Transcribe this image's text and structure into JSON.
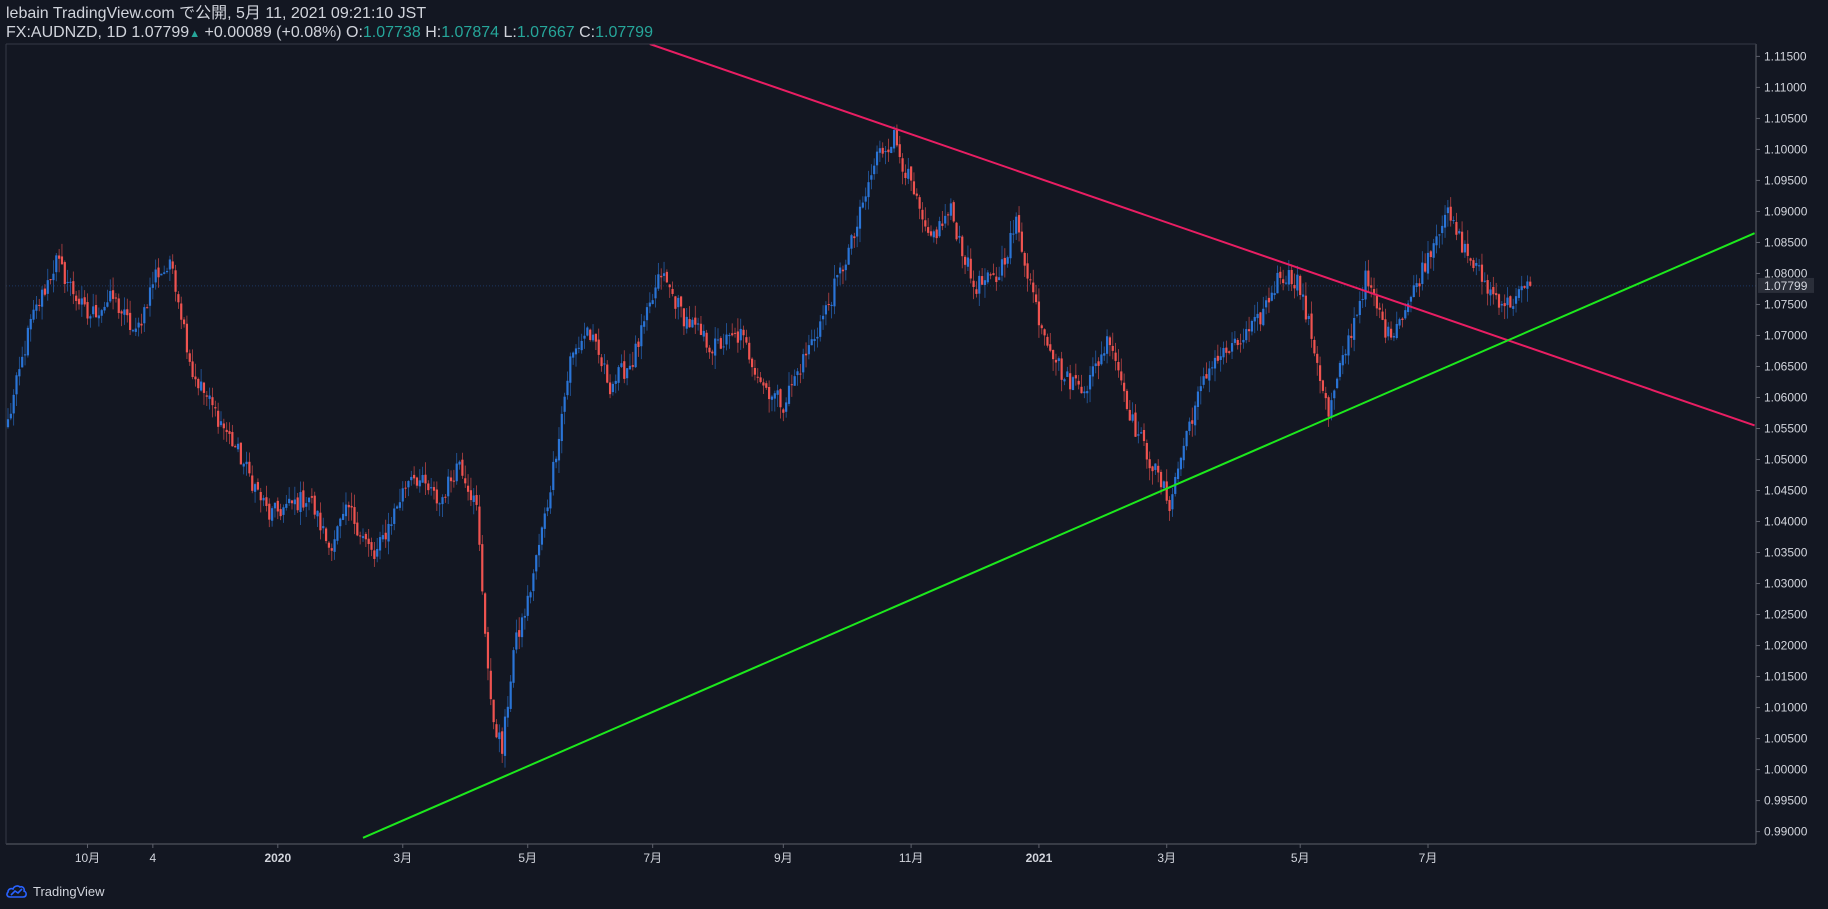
{
  "header": {
    "publish_line": "lebain TradingView.com で公開, 5月 11, 2021 09:21:10 JST",
    "symbol": "FX:AUDNZD, 1D",
    "last": "1.07799",
    "change_arrow": "▲",
    "change": "+0.00089 (+0.08%)",
    "open_label": "O:",
    "open": "1.07738",
    "high_label": "H:",
    "high": "1.07874",
    "low_label": "L:",
    "low": "1.07667",
    "close_label": "C:",
    "close": "1.07799"
  },
  "footer": {
    "brand": "TradingView"
  },
  "colors": {
    "background": "#131722",
    "up_candle": "#2a74d6",
    "down_candle": "#ef5350",
    "resistance_line": "#e91e63",
    "support_line": "#1de91d",
    "text": "#d1d4dc",
    "positive": "#26a69a"
  },
  "chart_data": {
    "type": "candlestick",
    "symbol": "FX:AUDNZD",
    "interval": "1D",
    "ylim": [
      0.988,
      1.117
    ],
    "y_ticks": [
      "1.11500",
      "1.11000",
      "1.10500",
      "1.10000",
      "1.09500",
      "1.09000",
      "1.08500",
      "1.08000",
      "1.07500",
      "1.07000",
      "1.06500",
      "1.06000",
      "1.05500",
      "1.05000",
      "1.04500",
      "1.04000",
      "1.03500",
      "1.03000",
      "1.02500",
      "1.02000",
      "1.01500",
      "1.01000",
      "1.00500",
      "1.00000",
      "0.99500",
      "0.99000"
    ],
    "last_price_label": "1.07799",
    "x_ticks": [
      {
        "label": "10月",
        "bold": false
      },
      {
        "label": "4",
        "bold": false
      },
      {
        "label": "2020",
        "bold": true
      },
      {
        "label": "3月",
        "bold": false
      },
      {
        "label": "5月",
        "bold": false
      },
      {
        "label": "7月",
        "bold": false
      },
      {
        "label": "9月",
        "bold": false
      },
      {
        "label": "11月",
        "bold": false
      },
      {
        "label": "2021",
        "bold": true
      },
      {
        "label": "3月",
        "bold": false
      },
      {
        "label": "5月",
        "bold": false
      },
      {
        "label": "7月",
        "bold": false
      }
    ],
    "close_path": [
      [
        0,
        1.056
      ],
      [
        8,
        1.072
      ],
      [
        17,
        1.082
      ],
      [
        28,
        1.073
      ],
      [
        37,
        1.076
      ],
      [
        45,
        1.07
      ],
      [
        52,
        1.08
      ],
      [
        58,
        1.081
      ],
      [
        65,
        1.064
      ],
      [
        80,
        1.052
      ],
      [
        92,
        1.041
      ],
      [
        106,
        1.044
      ],
      [
        113,
        1.036
      ],
      [
        120,
        1.042
      ],
      [
        129,
        1.034
      ],
      [
        142,
        1.048
      ],
      [
        152,
        1.043
      ],
      [
        159,
        1.05
      ],
      [
        165,
        1.042
      ],
      [
        170,
        1.01
      ],
      [
        174,
        1.003
      ],
      [
        178,
        1.019
      ],
      [
        183,
        1.027
      ],
      [
        190,
        1.043
      ],
      [
        198,
        1.066
      ],
      [
        204,
        1.071
      ],
      [
        212,
        1.062
      ],
      [
        220,
        1.066
      ],
      [
        230,
        1.08
      ],
      [
        238,
        1.073
      ],
      [
        248,
        1.068
      ],
      [
        258,
        1.07
      ],
      [
        266,
        1.062
      ],
      [
        273,
        1.059
      ],
      [
        280,
        1.066
      ],
      [
        288,
        1.074
      ],
      [
        298,
        1.086
      ],
      [
        306,
        1.099
      ],
      [
        312,
        1.102
      ],
      [
        318,
        1.094
      ],
      [
        324,
        1.085
      ],
      [
        332,
        1.09
      ],
      [
        340,
        1.078
      ],
      [
        348,
        1.079
      ],
      [
        355,
        1.088
      ],
      [
        363,
        1.073
      ],
      [
        372,
        1.063
      ],
      [
        380,
        1.062
      ],
      [
        388,
        1.07
      ],
      [
        396,
        1.056
      ],
      [
        404,
        1.048
      ],
      [
        409,
        1.043
      ],
      [
        416,
        1.056
      ],
      [
        424,
        1.066
      ],
      [
        432,
        1.068
      ],
      [
        440,
        1.072
      ],
      [
        448,
        1.08
      ],
      [
        454,
        1.079
      ],
      [
        460,
        1.068
      ],
      [
        465,
        1.057
      ],
      [
        470,
        1.066
      ],
      [
        478,
        1.079
      ],
      [
        486,
        1.07
      ],
      [
        494,
        1.076
      ],
      [
        500,
        1.083
      ],
      [
        506,
        1.09
      ],
      [
        514,
        1.083
      ],
      [
        522,
        1.077
      ],
      [
        528,
        1.075
      ],
      [
        536,
        1.078
      ]
    ],
    "trendlines": [
      {
        "role": "resistance",
        "from": [
          226,
          1.117
        ],
        "to": [
          615,
          1.0555
        ]
      },
      {
        "role": "support",
        "from": [
          125,
          0.989
        ],
        "to": [
          615,
          1.0865
        ]
      }
    ]
  }
}
